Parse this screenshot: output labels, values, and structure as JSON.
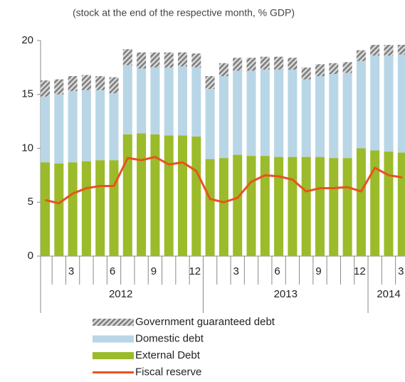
{
  "chart_data": {
    "type": "stacked-bar-line",
    "subtitle": "(stock at the end of the respective month, % GDP)",
    "categories": [
      null,
      null,
      "3",
      null,
      null,
      "6",
      null,
      null,
      "9",
      null,
      null,
      "12",
      null,
      null,
      "3",
      null,
      null,
      "6",
      null,
      null,
      "9",
      null,
      null,
      "12",
      null,
      null,
      "3"
    ],
    "groups": [
      {
        "name": "2012",
        "count": 12
      },
      {
        "name": "2013",
        "count": 12
      },
      {
        "name": "2014",
        "count": 3
      }
    ],
    "ylim": [
      0,
      20
    ],
    "yticks": [
      0,
      5,
      10,
      15,
      20
    ],
    "grid": false,
    "series": [
      {
        "name": "Government guaranteed debt",
        "kind": "bar",
        "color": "#7f7f7f",
        "hatch": true,
        "values": [
          1.5,
          1.4,
          1.4,
          1.4,
          1.3,
          1.5,
          1.5,
          1.5,
          1.4,
          1.4,
          1.3,
          1.3,
          1.2,
          1.2,
          1.2,
          1.2,
          1.2,
          1.2,
          1.1,
          1.1,
          1.1,
          1.0,
          1.0,
          1.0,
          1.0,
          1.0,
          0.9
        ]
      },
      {
        "name": "Domestic debt",
        "kind": "bar",
        "color": "#b8d6e6",
        "values": [
          6.1,
          6.4,
          6.6,
          6.6,
          6.5,
          6.2,
          6.4,
          6.0,
          6.2,
          6.3,
          6.4,
          6.4,
          6.5,
          7.6,
          7.8,
          7.9,
          8.0,
          8.1,
          8.1,
          7.2,
          7.5,
          7.8,
          7.9,
          8.1,
          8.8,
          8.9,
          9.1
        ]
      },
      {
        "name": "External Debt",
        "kind": "bar",
        "color": "#9bbb2a",
        "values": [
          8.7,
          8.6,
          8.7,
          8.8,
          8.9,
          8.9,
          11.3,
          11.4,
          11.3,
          11.2,
          11.2,
          11.1,
          9.0,
          9.1,
          9.4,
          9.3,
          9.3,
          9.2,
          9.2,
          9.2,
          9.2,
          9.1,
          9.1,
          10.0,
          9.8,
          9.7,
          9.6
        ]
      },
      {
        "name": "Fiscal reserve",
        "kind": "line",
        "color": "#e8541e",
        "values": [
          5.2,
          4.9,
          5.8,
          6.3,
          6.5,
          6.5,
          9.1,
          8.9,
          9.2,
          8.5,
          8.7,
          7.9,
          5.3,
          5.0,
          5.4,
          6.9,
          7.5,
          7.4,
          7.1,
          6.0,
          6.3,
          6.3,
          6.4,
          6.0,
          8.2,
          7.5,
          7.3
        ]
      }
    ]
  }
}
